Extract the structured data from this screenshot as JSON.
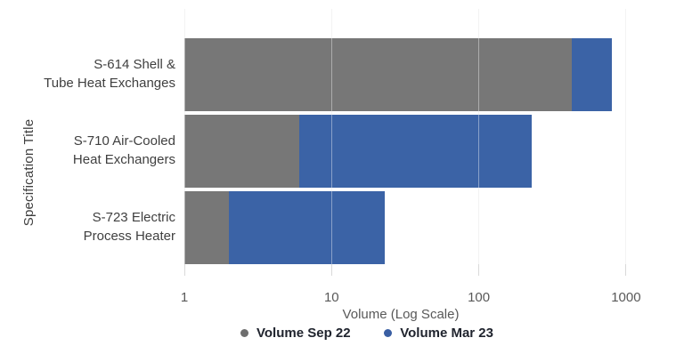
{
  "chart_data": {
    "type": "bar",
    "orientation": "horizontal",
    "x_scale": "log10",
    "bar_style": "overlapped",
    "title": "",
    "xlabel": "Volume (Log Scale)",
    "ylabel": "Specification Title",
    "x_ticks": [
      1,
      10,
      100,
      1000
    ],
    "x_tick_labels": [
      "1",
      "10",
      "100",
      "1000"
    ],
    "xlim": [
      1,
      1800
    ],
    "grid": "vertical-light",
    "legend_position": "bottom",
    "categories": [
      "S-614 Shell & Tube Heat Exchanges",
      "S-710 Air-Cooled Heat Exchangers",
      "S-723 Electric Process Heater"
    ],
    "category_lines": [
      [
        "S-614 Shell &",
        "Tube Heat Exchanges"
      ],
      [
        "S-710 Air-Cooled",
        "Heat Exchangers"
      ],
      [
        "S-723 Electric",
        "Process Heater"
      ]
    ],
    "series": [
      {
        "name": "Volume Sep 22",
        "color": "#777777",
        "dot_color": "#6e6e6e",
        "values": [
          430,
          6,
          2
        ]
      },
      {
        "name": "Volume Mar 23",
        "color": "#3B63A6",
        "dot_color": "#3a5fa3",
        "values": [
          800,
          230,
          23
        ]
      }
    ]
  },
  "colors": {
    "gridline": "#ececec",
    "tick_mark": "#d9d9d9",
    "axis_text": "#595959",
    "category_text": "#3f3f3f",
    "legend_text": "#20242e",
    "background": "#ffffff"
  }
}
